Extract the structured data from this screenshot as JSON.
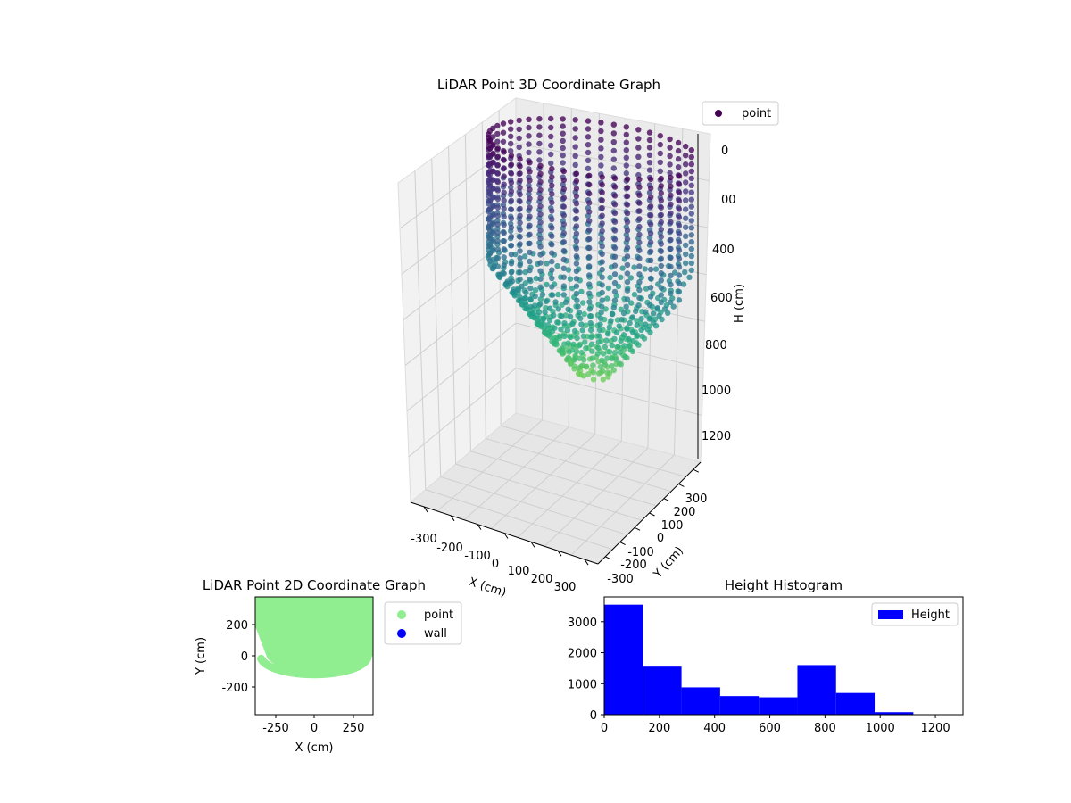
{
  "chart_data": [
    {
      "type": "scatter",
      "title": "LiDAR Point 3D Coordinate Graph",
      "xlabel": "X (cm)",
      "ylabel": "Y (cm)",
      "zlabel": "H (cm)",
      "x_ticks": [
        "-300",
        "-200",
        "-100",
        "0",
        "100",
        "200",
        "300"
      ],
      "y_ticks": [
        "-300",
        "-200",
        "-100",
        "0",
        "100",
        "200",
        "300"
      ],
      "z_ticks": [
        "0",
        "200",
        "400",
        "600",
        "800",
        "1000",
        "1200"
      ],
      "z_ticks_shown": [
        "0",
        "00",
        "400",
        "600",
        "800",
        "1000",
        "1200"
      ],
      "xlim": [
        -350,
        350
      ],
      "ylim": [
        -350,
        350
      ],
      "zlim": [
        0,
        1300
      ],
      "z_inverted": true,
      "grid": true,
      "colormap": "viridis",
      "legend": {
        "entries": [
          "point"
        ],
        "position": "top-right"
      },
      "series": [
        {
          "name": "point",
          "description_only_for_shape": "cylindrical wall of points, radius ~330 cm, height 0 to ~1000 cm, bottom converging toward center",
          "radius": 330,
          "height_min": 0,
          "height_max": 1000
        }
      ]
    },
    {
      "type": "scatter",
      "title": "LiDAR Point 2D Coordinate Graph",
      "xlabel": "X (cm)",
      "ylabel": "Y (cm)",
      "x_ticks": [
        "-250",
        "0",
        "250"
      ],
      "y_ticks": [
        "200",
        "0",
        "-200"
      ],
      "xlim": [
        -380,
        380
      ],
      "ylim": [
        -380,
        380
      ],
      "grid": false,
      "legend": {
        "entries": [
          "point",
          "wall"
        ],
        "position": "outside-right"
      },
      "series": [
        {
          "name": "point",
          "color": "#90ee90",
          "region": "filled half-disc y>=0 plus lower rim to y≈-120"
        },
        {
          "name": "wall",
          "color": "#0000ff"
        }
      ]
    },
    {
      "type": "bar",
      "title": "Height Histogram",
      "xlabel": "",
      "ylabel": "",
      "bin_edges": [
        0,
        140,
        280,
        420,
        560,
        700,
        840,
        980,
        1120
      ],
      "values": [
        3550,
        1550,
        880,
        600,
        560,
        1600,
        700,
        80
      ],
      "xlim": [
        0,
        1300
      ],
      "ylim": [
        0,
        3800
      ],
      "x_ticks": [
        "0",
        "200",
        "400",
        "600",
        "800",
        "1000",
        "1200"
      ],
      "y_ticks": [
        "0",
        "1000",
        "2000",
        "3000"
      ],
      "color": "#0000ff",
      "legend": {
        "entries": [
          "Height"
        ],
        "position": "top-right"
      },
      "series": [
        {
          "name": "Height"
        }
      ]
    }
  ]
}
